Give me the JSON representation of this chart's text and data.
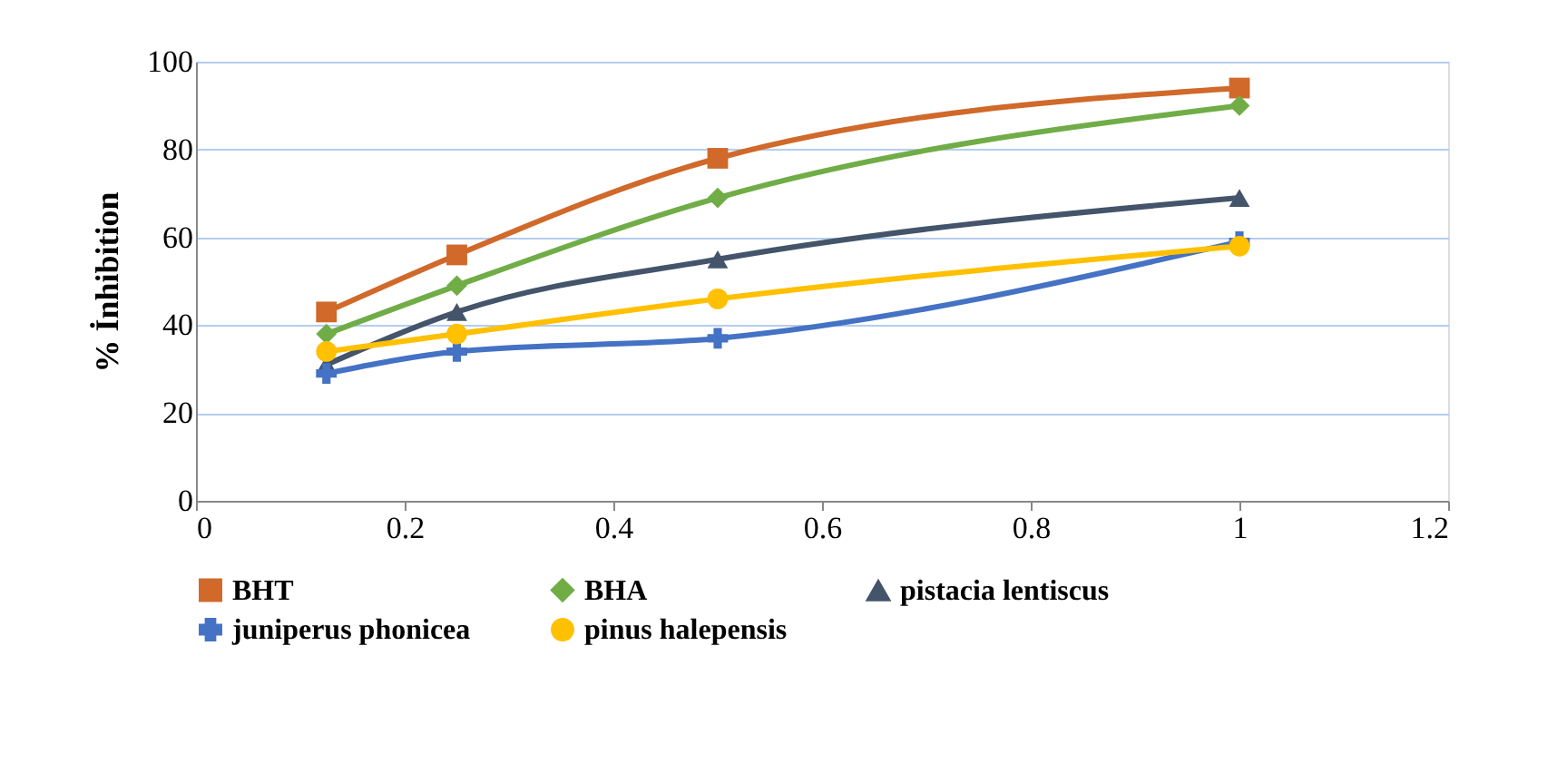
{
  "chart_data": {
    "type": "line",
    "ylabel": "% İnhibition",
    "x": [
      0.125,
      0.25,
      0.5,
      1
    ],
    "series": [
      {
        "name": "BHT",
        "color": "#d0692a",
        "marker": "square",
        "values": [
          43,
          56,
          78,
          94
        ]
      },
      {
        "name": "BHA",
        "color": "#70ad47",
        "marker": "diamond",
        "values": [
          38,
          49,
          69,
          90
        ]
      },
      {
        "name": "pistacia lentiscus",
        "color": "#44546a",
        "marker": "triangle",
        "values": [
          31,
          43,
          55,
          69
        ]
      },
      {
        "name": "juniperus phonicea",
        "color": "#4472c4",
        "marker": "cross",
        "values": [
          29,
          34,
          37,
          59
        ]
      },
      {
        "name": "pinus halepensis",
        "color": "#ffc000",
        "marker": "circle",
        "values": [
          34,
          38,
          46,
          58
        ]
      }
    ],
    "xlim": [
      0,
      1.2
    ],
    "xticks": [
      0,
      0.2,
      0.4,
      0.6,
      0.8,
      1,
      1.2
    ],
    "ylim": [
      0,
      100
    ],
    "yticks": [
      0,
      20,
      40,
      60,
      80,
      100
    ],
    "grid": "y",
    "legend": "bottom",
    "line_style": "solid"
  }
}
